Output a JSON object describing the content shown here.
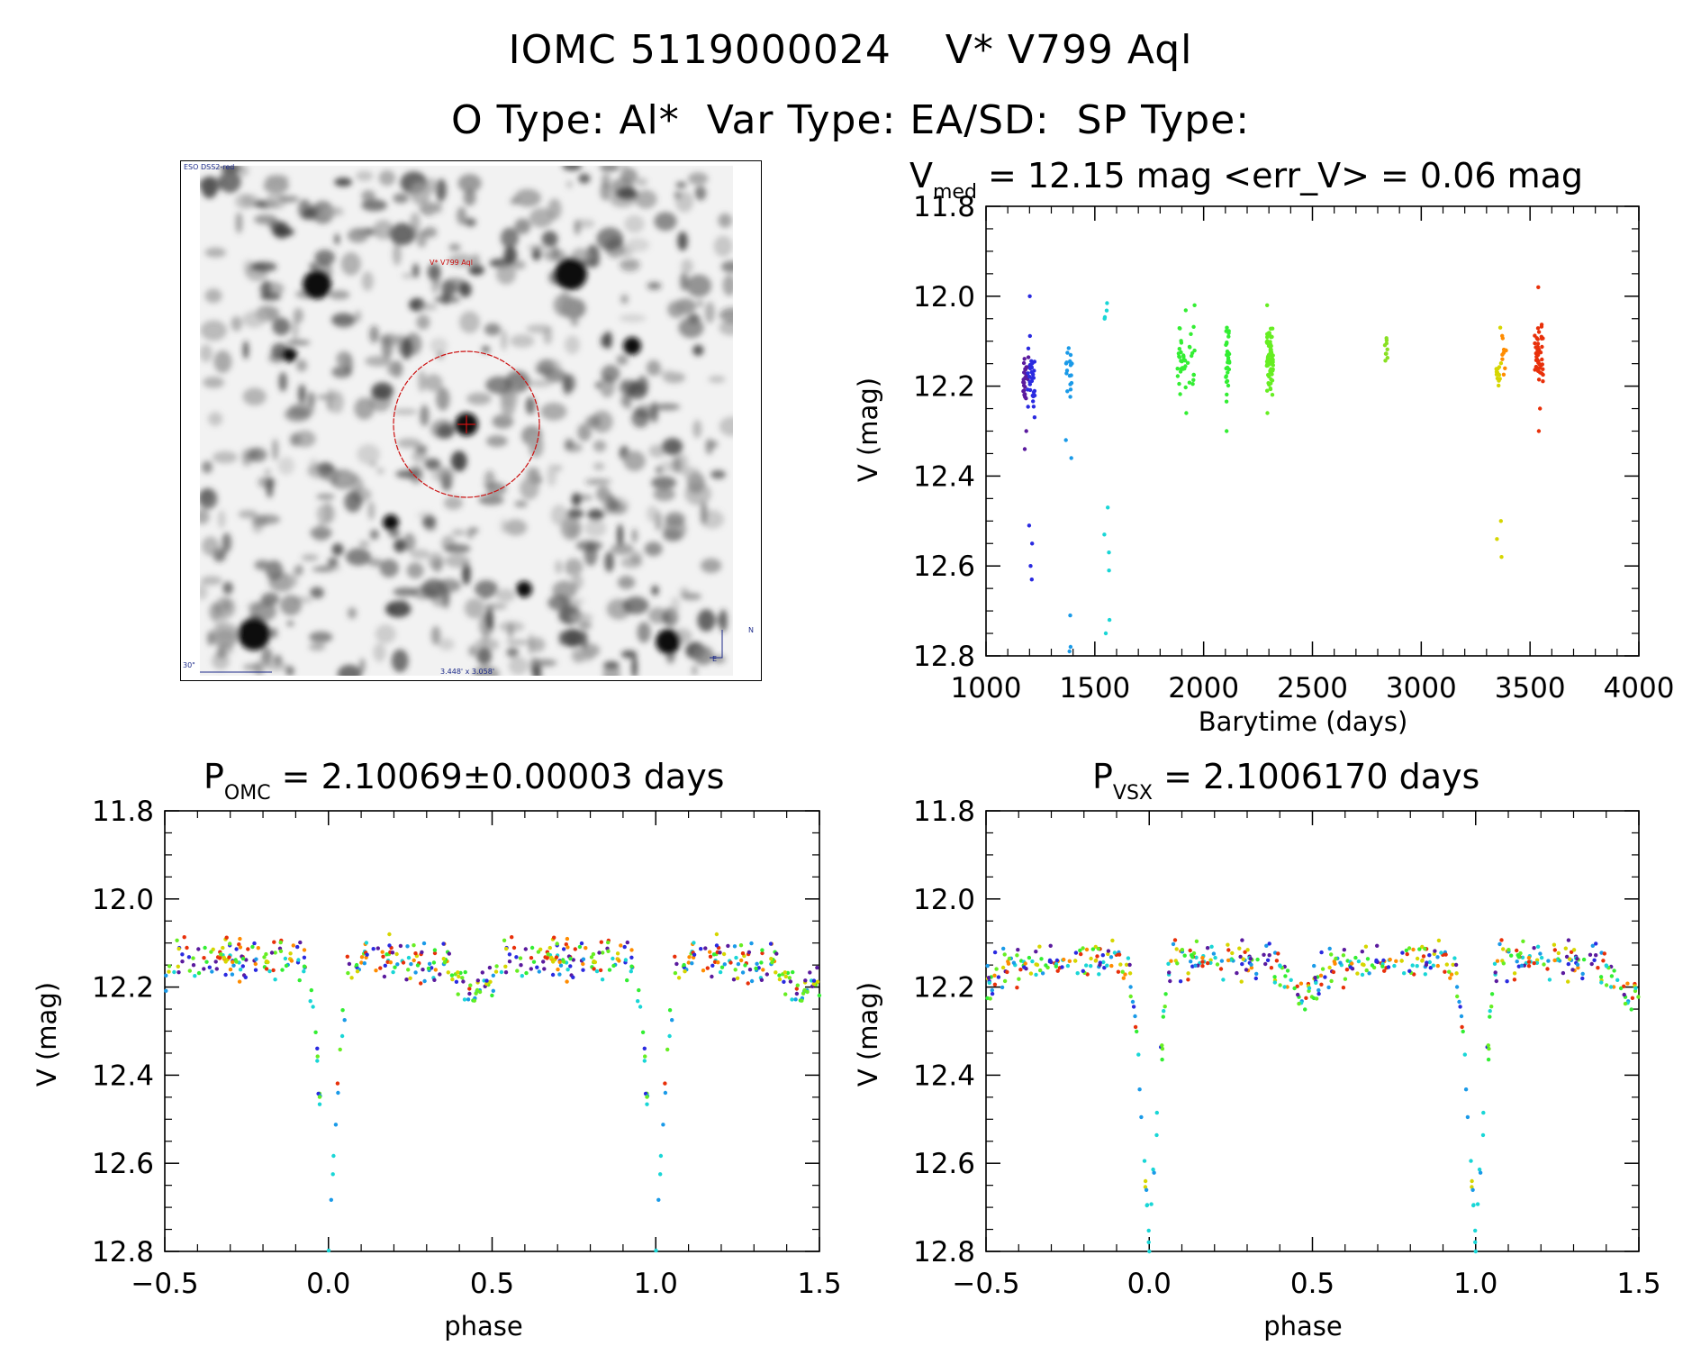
{
  "header": {
    "title_line1": "IOMC 5119000024    V* V799 Aql",
    "title_line2": "O Type: Al*  Var Type: EA/SD:  SP Type:"
  },
  "image_panel": {
    "survey_label": "ESO DSS2-red",
    "target_label": "V* V799 Aql",
    "scale_label": "30\"",
    "fov_label": "3.448' x 3.058'",
    "north_label": "N",
    "east_label": "E",
    "circle_color": "#cc1111",
    "label_color": "#1d2b8a"
  },
  "chart_data": [
    {
      "id": "lightcurve",
      "type": "scatter",
      "title_prefix": "V",
      "title_sub": "med",
      "title_suffix": " = 12.15 mag <err_V> = 0.06 mag",
      "xlabel": "Barytime (days)",
      "ylabel": "V (mag)",
      "xlim": [
        1000,
        4000
      ],
      "ylim": [
        11.8,
        12.8
      ],
      "y_inverted": true,
      "xticks": [
        "1000",
        "1500",
        "2000",
        "2500",
        "3000",
        "3500",
        "4000"
      ],
      "yticks": [
        "11.8",
        "12.0",
        "12.2",
        "12.4",
        "12.6",
        "12.8"
      ],
      "groups": [
        {
          "color": "#5a1a9e",
          "x_range": [
            1170,
            1195
          ],
          "y_center": 12.18,
          "y_spread": 0.04,
          "count": 25,
          "outliers": [
            12.3,
            12.34
          ]
        },
        {
          "color": "#2a2ae0",
          "x_range": [
            1190,
            1225
          ],
          "y_center": 12.18,
          "y_spread": 0.05,
          "count": 30,
          "outliers": [
            12.0,
            12.51,
            12.55,
            12.6,
            12.63
          ]
        },
        {
          "color": "#1a9ae8",
          "x_range": [
            1365,
            1395
          ],
          "y_center": 12.17,
          "y_spread": 0.04,
          "count": 18,
          "outliers": [
            12.32,
            12.36,
            12.71,
            12.78,
            12.79
          ]
        },
        {
          "color": "#19d6d6",
          "x_range": [
            1540,
            1570
          ],
          "y_center": 12.05,
          "y_spread": 0.02,
          "count": 4,
          "outliers": [
            12.47,
            12.53,
            12.57,
            12.61,
            12.72,
            12.75
          ]
        },
        {
          "color": "#33ee33",
          "x_range": [
            1880,
            1960
          ],
          "y_center": 12.14,
          "y_spread": 0.06,
          "count": 40,
          "outliers": [
            12.02,
            12.26
          ]
        },
        {
          "color": "#33ee33",
          "x_range": [
            2100,
            2120
          ],
          "y_center": 12.15,
          "y_spread": 0.05,
          "count": 30,
          "outliers": [
            12.07,
            12.3
          ]
        },
        {
          "color": "#66ee22",
          "x_range": [
            2290,
            2320
          ],
          "y_center": 12.14,
          "y_spread": 0.05,
          "count": 70,
          "outliers": [
            12.02,
            12.26
          ]
        },
        {
          "color": "#88e022",
          "x_range": [
            2830,
            2845
          ],
          "y_center": 12.12,
          "y_spread": 0.02,
          "count": 10,
          "outliers": []
        },
        {
          "color": "#d6d600",
          "x_range": [
            3345,
            3370
          ],
          "y_center": 12.17,
          "y_spread": 0.03,
          "count": 12,
          "outliers": [
            12.07,
            12.5,
            12.54,
            12.58
          ]
        },
        {
          "color": "#ff8c00",
          "x_range": [
            3370,
            3390
          ],
          "y_center": 12.15,
          "y_spread": 0.04,
          "count": 10,
          "outliers": []
        },
        {
          "color": "#e8300a",
          "x_range": [
            3520,
            3560
          ],
          "y_center": 12.13,
          "y_spread": 0.06,
          "count": 45,
          "outliers": [
            11.98,
            12.25,
            12.3
          ]
        }
      ]
    },
    {
      "id": "phase_omc",
      "type": "scatter",
      "title_prefix": "P",
      "title_sub": "OMC",
      "title_suffix": " = 2.10069±0.00003 days",
      "xlabel": "phase",
      "ylabel": "V (mag)",
      "xlim": [
        -0.5,
        1.5
      ],
      "ylim": [
        11.8,
        12.8
      ],
      "y_inverted": true,
      "xticks": [
        "−0.5",
        "0.0",
        "0.5",
        "1.0",
        "1.5"
      ],
      "yticks": [
        "11.8",
        "12.0",
        "12.2",
        "12.4",
        "12.6",
        "12.8"
      ],
      "eclipse_phase": 0.0,
      "primary_depth": 12.8,
      "secondary_phase": 0.45,
      "secondary_depth": 12.22,
      "baseline": 12.14,
      "seed": 7
    },
    {
      "id": "phase_vsx",
      "type": "scatter",
      "title_prefix": "P",
      "title_sub": "VSX",
      "title_suffix": " = 2.1006170 days",
      "xlabel": "phase",
      "ylabel": "V (mag)",
      "xlim": [
        -0.5,
        1.5
      ],
      "ylim": [
        11.8,
        12.8
      ],
      "y_inverted": true,
      "xticks": [
        "−0.5",
        "0.0",
        "0.5",
        "1.0",
        "1.5"
      ],
      "yticks": [
        "11.8",
        "12.0",
        "12.2",
        "12.4",
        "12.6",
        "12.8"
      ],
      "eclipse_phase": 0.0,
      "primary_depth": 12.8,
      "secondary_phase": 0.47,
      "secondary_depth": 12.22,
      "baseline": 12.14,
      "seed": 11
    }
  ]
}
